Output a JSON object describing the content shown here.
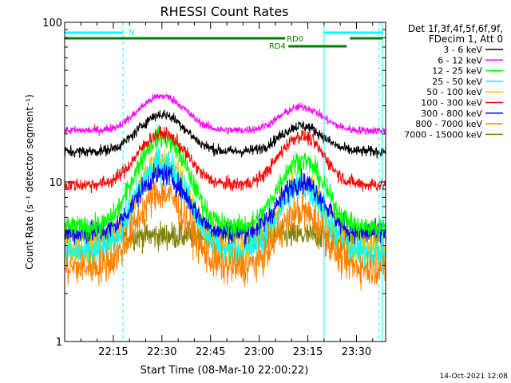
{
  "chart_data": {
    "type": "line",
    "title": "RHESSI Count Rates",
    "xlabel": "Start Time (08-Mar-10 22:00:22)",
    "ylabel": "Count Rate (s⁻¹ detector segment⁻¹)",
    "yscale": "log",
    "ylim": [
      1,
      100
    ],
    "xlim_minutes": [
      0,
      99
    ],
    "x_ticks": [
      {
        "m": 15,
        "label": "22:15"
      },
      {
        "m": 30,
        "label": "22:30"
      },
      {
        "m": 45,
        "label": "22:45"
      },
      {
        "m": 60,
        "label": "23:00"
      },
      {
        "m": 75,
        "label": "23:15"
      },
      {
        "m": 90,
        "label": "23:30"
      }
    ],
    "y_ticks": [
      {
        "v": 1,
        "label": "1"
      },
      {
        "v": 10,
        "label": "10"
      },
      {
        "v": 100,
        "label": "100"
      }
    ],
    "legend_header": [
      "Det 1f,3f,4f,5f,6f,9f,",
      "FDecim 1, Att 0"
    ],
    "series": [
      {
        "name": "3 - 6 keV",
        "color": "#000000",
        "base": 15.5,
        "peak1": 11.0,
        "peak2": 7.0,
        "noise": 0.04
      },
      {
        "name": "6 - 12 keV",
        "color": "#ff00ff",
        "base": 21.0,
        "peak1": 13.5,
        "peak2": 8.5,
        "noise": 0.03
      },
      {
        "name": "12 - 25 keV",
        "color": "#00ff00",
        "base": 5.2,
        "peak1": 13.8,
        "peak2": 8.5,
        "noise": 0.08
      },
      {
        "name": "25 - 50 keV",
        "color": "#00ffff",
        "base": 3.6,
        "peak1": 9.5,
        "peak2": 5.8,
        "noise": 0.12
      },
      {
        "name": "50 - 100 keV",
        "color": "#ffc000",
        "base": 3.8,
        "peak1": 9.5,
        "peak2": 5.8,
        "noise": 0.12
      },
      {
        "name": "100 - 300 keV",
        "color": "#ff0000",
        "base": 9.6,
        "peak1": 10.5,
        "peak2": 9.8,
        "noise": 0.05
      },
      {
        "name": "300 - 800 keV",
        "color": "#0000ff",
        "base": 4.8,
        "peak1": 6.4,
        "peak2": 5.2,
        "noise": 0.08
      },
      {
        "name": "800 - 7000 keV",
        "color": "#ff8000",
        "base": 2.9,
        "peak1": 5.6,
        "peak2": 3.6,
        "noise": 0.13
      },
      {
        "name": "7000 - 15000 keV",
        "color": "#808000",
        "base": 4.6,
        "peak1": 0,
        "peak2": 0,
        "noise": 0.1
      }
    ],
    "peaks_minutes": {
      "p1_center": 30,
      "p1_width": 6.5,
      "p2_center": 73,
      "p2_width": 6.0
    },
    "night_boundaries_minutes": [
      0,
      98
    ],
    "saa_boundaries_minutes": [
      18,
      80,
      97
    ],
    "annotations": [
      {
        "label": "N",
        "color": "#00ffff"
      },
      {
        "label": "RD0",
        "color": "#008000"
      },
      {
        "label": "RD4",
        "color": "#008000"
      }
    ],
    "flag_bars": [
      {
        "color": "#00ffff",
        "start_m": 0,
        "end_m": 18
      },
      {
        "color": "#00ffff",
        "start_m": 80,
        "end_m": 98
      },
      {
        "color": "#008000",
        "start_m": 0,
        "end_m": 68
      },
      {
        "color": "#008000",
        "start_m": 88,
        "end_m": 98
      },
      {
        "color": "#008000",
        "start_m": 69,
        "end_m": 87
      }
    ],
    "footer": "14-Oct-2021 12:08"
  }
}
